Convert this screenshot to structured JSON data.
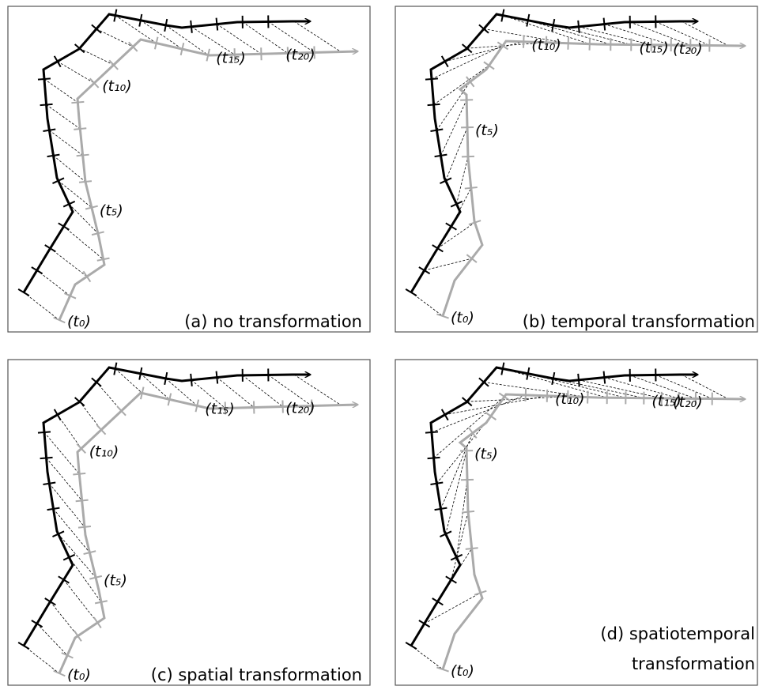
{
  "panels": [
    {
      "caption": [
        "(a) no transformation"
      ],
      "labels": [
        "(t₀)",
        "(t₅)",
        "(t₁₀)",
        "(t₁₅)",
        "(t₂₀)"
      ]
    },
    {
      "caption": [
        "(b) temporal transformation"
      ],
      "labels": [
        "(t₀)",
        "(t₅)",
        "(t₁₀)",
        "(t₁₅)",
        "(t₂₀)"
      ]
    },
    {
      "caption": [
        "(c) spatial transformation"
      ],
      "labels": [
        "(t₀)",
        "(t₅)",
        "(t₁₀)",
        "(t₁₅)",
        "(t₂₀)"
      ]
    },
    {
      "caption": [
        "(d) spatiotemporal",
        "transformation"
      ],
      "labels": [
        "(t₀)",
        "(t₅)",
        "(t₁₀)",
        "(t₁₅)",
        "(t₂₀)"
      ]
    }
  ]
}
